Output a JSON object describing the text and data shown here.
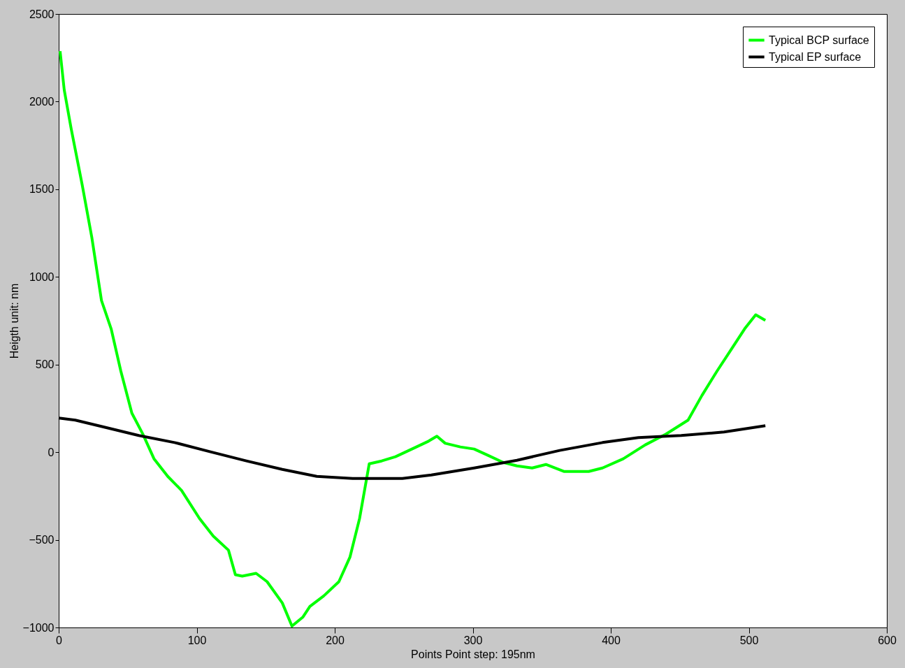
{
  "chart_data": {
    "type": "line",
    "xlabel": "Points Point step: 195nm",
    "ylabel": "Heigth unit: nm",
    "xlim": [
      0,
      600
    ],
    "xticks": [
      0,
      100,
      200,
      300,
      400,
      500,
      600
    ],
    "ylim": [
      -1000,
      2500
    ],
    "yticks": [
      -1000,
      -500,
      0,
      500,
      1000,
      1500,
      2000,
      2500
    ],
    "grid": false,
    "legend": "top right",
    "line_style": "solid",
    "series": [
      {
        "name": "Typical BCP surface",
        "color": "#00ff00",
        "x": [
          1,
          4,
          9,
          17,
          24,
          31,
          38,
          45,
          53,
          61,
          69,
          79,
          89,
          102,
          112,
          123,
          128,
          133,
          143,
          151,
          162,
          169,
          177,
          182,
          192,
          203,
          211,
          218,
          225,
          234,
          244,
          257,
          268,
          274,
          280,
          291,
          301,
          311,
          322,
          332,
          343,
          353,
          366,
          384,
          394,
          409,
          425,
          440,
          456,
          466,
          477,
          487,
          497,
          505,
          512
        ],
        "values": [
          2288,
          2067,
          1847,
          1526,
          1225,
          865,
          704,
          463,
          223,
          103,
          -37,
          -138,
          -218,
          -378,
          -479,
          -559,
          -699,
          -707,
          -691,
          -739,
          -860,
          -992,
          -940,
          -880,
          -820,
          -739,
          -599,
          -378,
          -66,
          -50,
          -26,
          22,
          63,
          91,
          51,
          30,
          18,
          -18,
          -58,
          -78,
          -90,
          -70,
          -110,
          -110,
          -90,
          -38,
          42,
          103,
          183,
          323,
          463,
          583,
          704,
          784,
          752
        ]
      },
      {
        "name": "Typical EP surface",
        "color": "#000000",
        "x": [
          0,
          12,
          33,
          58,
          84,
          110,
          136,
          162,
          187,
          213,
          249,
          270,
          301,
          332,
          363,
          394,
          420,
          451,
          482,
          512
        ],
        "values": [
          195,
          183,
          143,
          95,
          55,
          2,
          -50,
          -98,
          -138,
          -150,
          -150,
          -130,
          -90,
          -46,
          10,
          55,
          83,
          95,
          115,
          151
        ]
      }
    ]
  }
}
